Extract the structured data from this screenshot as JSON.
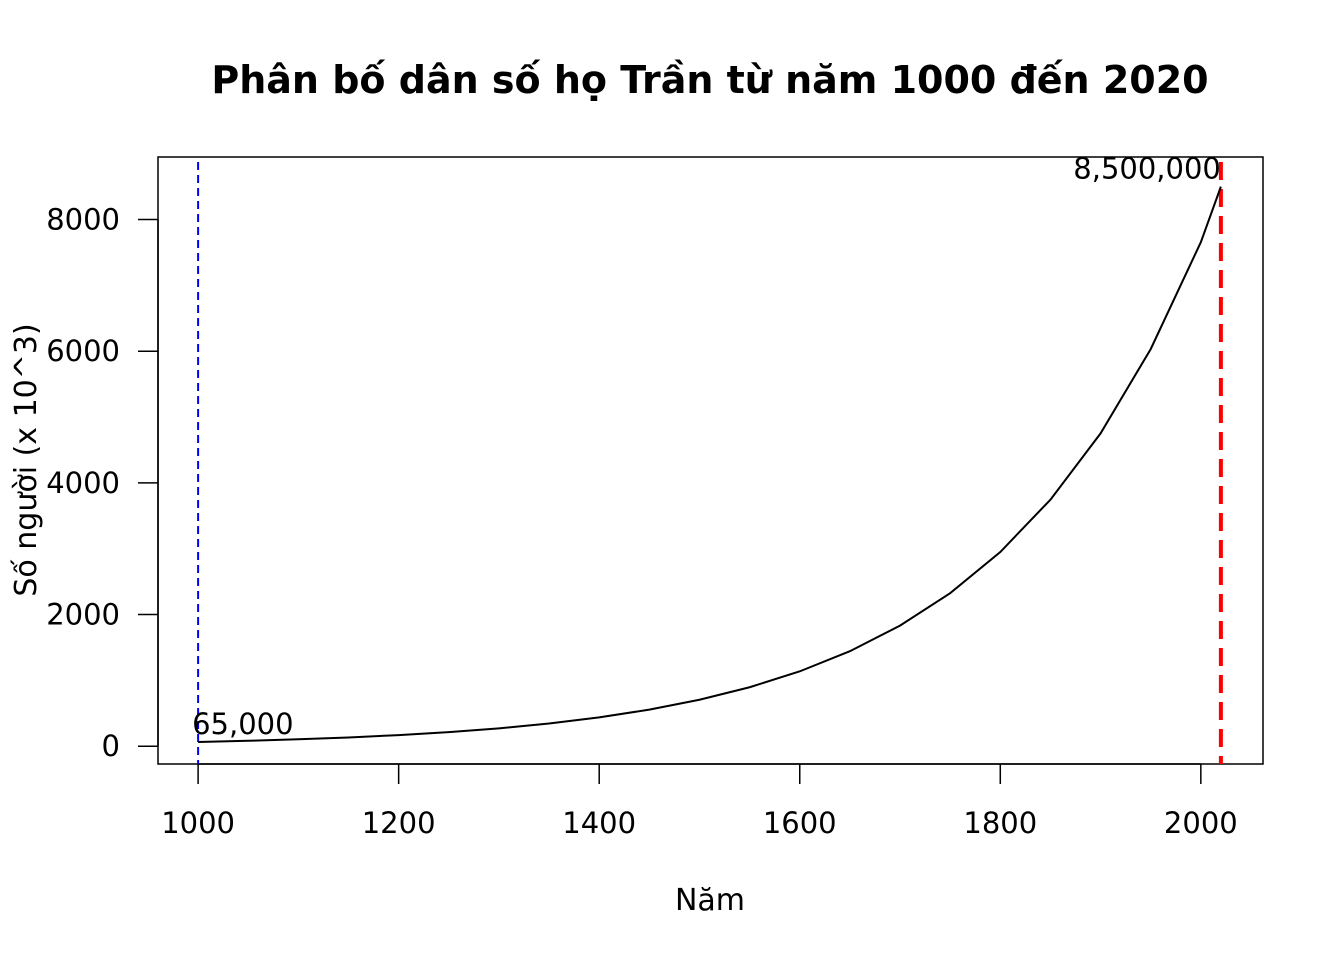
{
  "chart_data": {
    "type": "line",
    "title": "Phân bố dân số họ Trần từ năm 1000 đến 2020",
    "xlabel": "Năm",
    "ylabel": "Số người (x 10^3)",
    "xlim": [
      960,
      2062
    ],
    "ylim": [
      -270,
      8950
    ],
    "xticks": [
      1000,
      1200,
      1400,
      1600,
      1800,
      2000
    ],
    "yticks": [
      0,
      2000,
      4000,
      6000,
      8000
    ],
    "series": [
      {
        "color": "#000000",
        "x": [
          1000,
          1050,
          1100,
          1150,
          1200,
          1250,
          1300,
          1350,
          1400,
          1450,
          1500,
          1550,
          1600,
          1650,
          1700,
          1750,
          1800,
          1850,
          1900,
          1950,
          2000,
          2020
        ],
        "y": [
          65,
          83,
          105,
          133,
          169,
          214,
          272,
          345,
          438,
          556,
          706,
          896,
          1137,
          1443,
          1832,
          2325,
          2950,
          3745,
          4752,
          6032,
          7656,
          8500
        ]
      }
    ],
    "reference_lines": [
      {
        "axis": "x",
        "value": 1000,
        "color": "#0000ff",
        "style": "dashed"
      },
      {
        "axis": "x",
        "value": 2020,
        "color": "#ff0000",
        "style": "dashed-thick"
      }
    ],
    "annotations": [
      {
        "text": "65,000",
        "x": 1000,
        "y": 65,
        "anchor": "start"
      },
      {
        "text": "8,500,000",
        "x": 2020,
        "y": 8500,
        "anchor": "end"
      }
    ],
    "grid": false,
    "legend": "none"
  }
}
